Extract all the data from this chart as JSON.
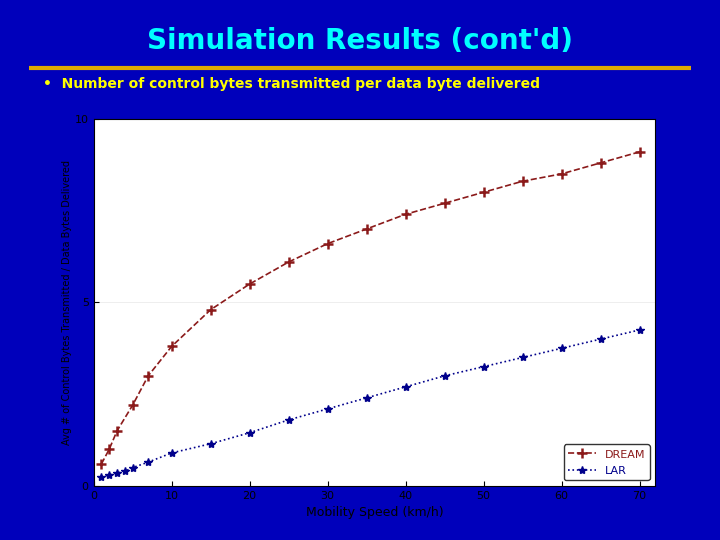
{
  "title": "Simulation Results (cont'd)",
  "bullet_text": "Number of control bytes transmitted per data byte delivered",
  "xlabel": "Mobility Speed (km/h)",
  "ylabel": "Avg # of Control Bytes Transmitted / Data Bytes Delivered",
  "xlim": [
    0,
    72
  ],
  "ylim": [
    0,
    10
  ],
  "xticks": [
    0,
    10,
    20,
    30,
    40,
    50,
    60,
    70
  ],
  "yticks": [
    0,
    5,
    10
  ],
  "bg_color": "#0000bb",
  "plot_bg": "#ffffff",
  "title_color": "#00ffff",
  "title_underline_color": "#ddaa00",
  "bullet_color": "#ffff00",
  "dream_color": "#8b1a1a",
  "lar_color": "#00008b",
  "dream_x": [
    1,
    2,
    3,
    5,
    7,
    10,
    15,
    20,
    25,
    30,
    35,
    40,
    45,
    50,
    55,
    60,
    65,
    70
  ],
  "dream_y": [
    0.6,
    1.0,
    1.5,
    2.2,
    3.0,
    3.8,
    4.8,
    5.5,
    6.1,
    6.6,
    7.0,
    7.4,
    7.7,
    8.0,
    8.3,
    8.5,
    8.8,
    9.1
  ],
  "lar_x": [
    1,
    2,
    3,
    4,
    5,
    7,
    10,
    15,
    20,
    25,
    30,
    35,
    40,
    45,
    50,
    55,
    60,
    65,
    70
  ],
  "lar_y": [
    0.25,
    0.3,
    0.35,
    0.4,
    0.5,
    0.65,
    0.9,
    1.15,
    1.45,
    1.8,
    2.1,
    2.4,
    2.7,
    3.0,
    3.25,
    3.5,
    3.75,
    4.0,
    4.25
  ],
  "fig_width": 7.2,
  "fig_height": 5.4,
  "dpi": 100
}
